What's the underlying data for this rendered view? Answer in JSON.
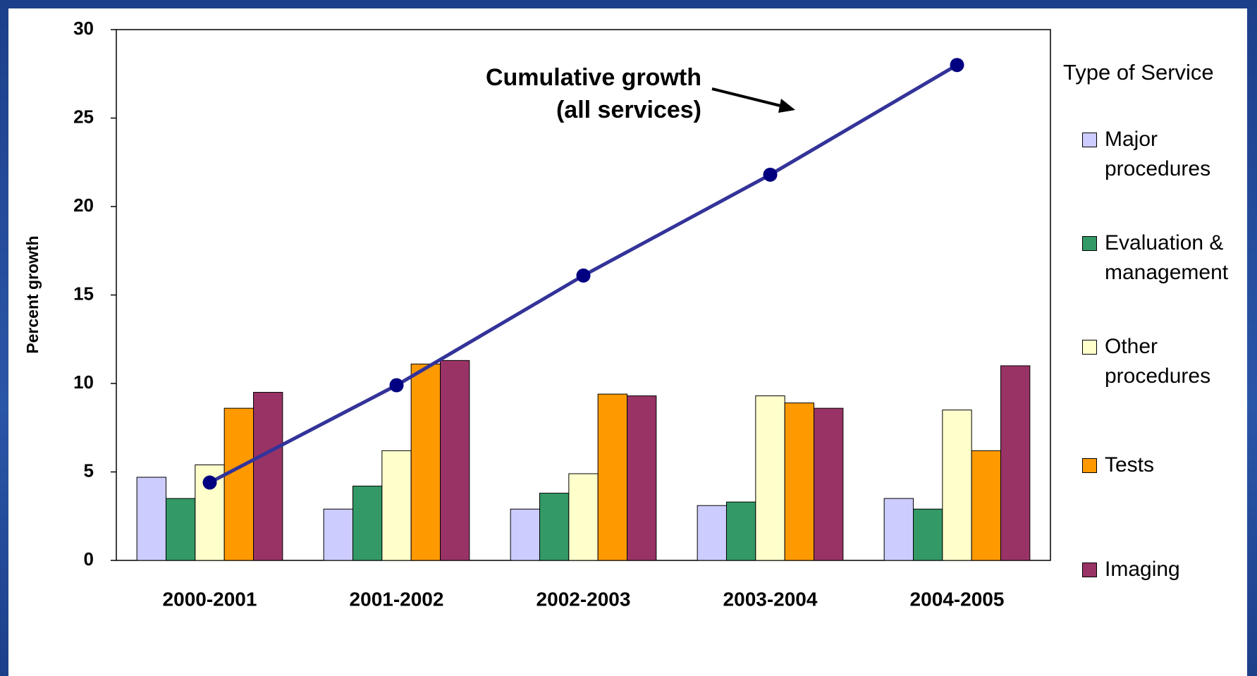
{
  "chart_data": {
    "type": "bar",
    "ylabel": "Percent growth",
    "categories": [
      "2000-2001",
      "2001-2002",
      "2002-2003",
      "2003-2004",
      "2004-2005"
    ],
    "series": [
      {
        "name": "Major procedures",
        "color": "#ccccff",
        "values": [
          4.7,
          2.9,
          2.9,
          3.1,
          3.5
        ]
      },
      {
        "name": "Evaluation & management",
        "color": "#339966",
        "values": [
          3.5,
          4.2,
          3.8,
          3.3,
          2.9
        ]
      },
      {
        "name": "Other procedures",
        "color": "#ffffcc",
        "values": [
          5.4,
          6.2,
          4.9,
          9.3,
          8.5
        ]
      },
      {
        "name": "Tests",
        "color": "#ff9900",
        "values": [
          8.6,
          11.1,
          9.4,
          8.9,
          6.2
        ]
      },
      {
        "name": "Imaging",
        "color": "#993366",
        "values": [
          9.5,
          11.3,
          9.3,
          8.6,
          11.0
        ]
      }
    ],
    "line": {
      "color": "#333399",
      "values": [
        4.4,
        9.9,
        16.1,
        21.8,
        28.0
      ]
    },
    "annotation": [
      "Cumulative growth",
      "(all services)"
    ],
    "legend_title": "Type of Service",
    "legend": "right",
    "ylim": [
      0,
      30
    ],
    "yticks": [
      0,
      5,
      10,
      15,
      20,
      25,
      30
    ]
  }
}
